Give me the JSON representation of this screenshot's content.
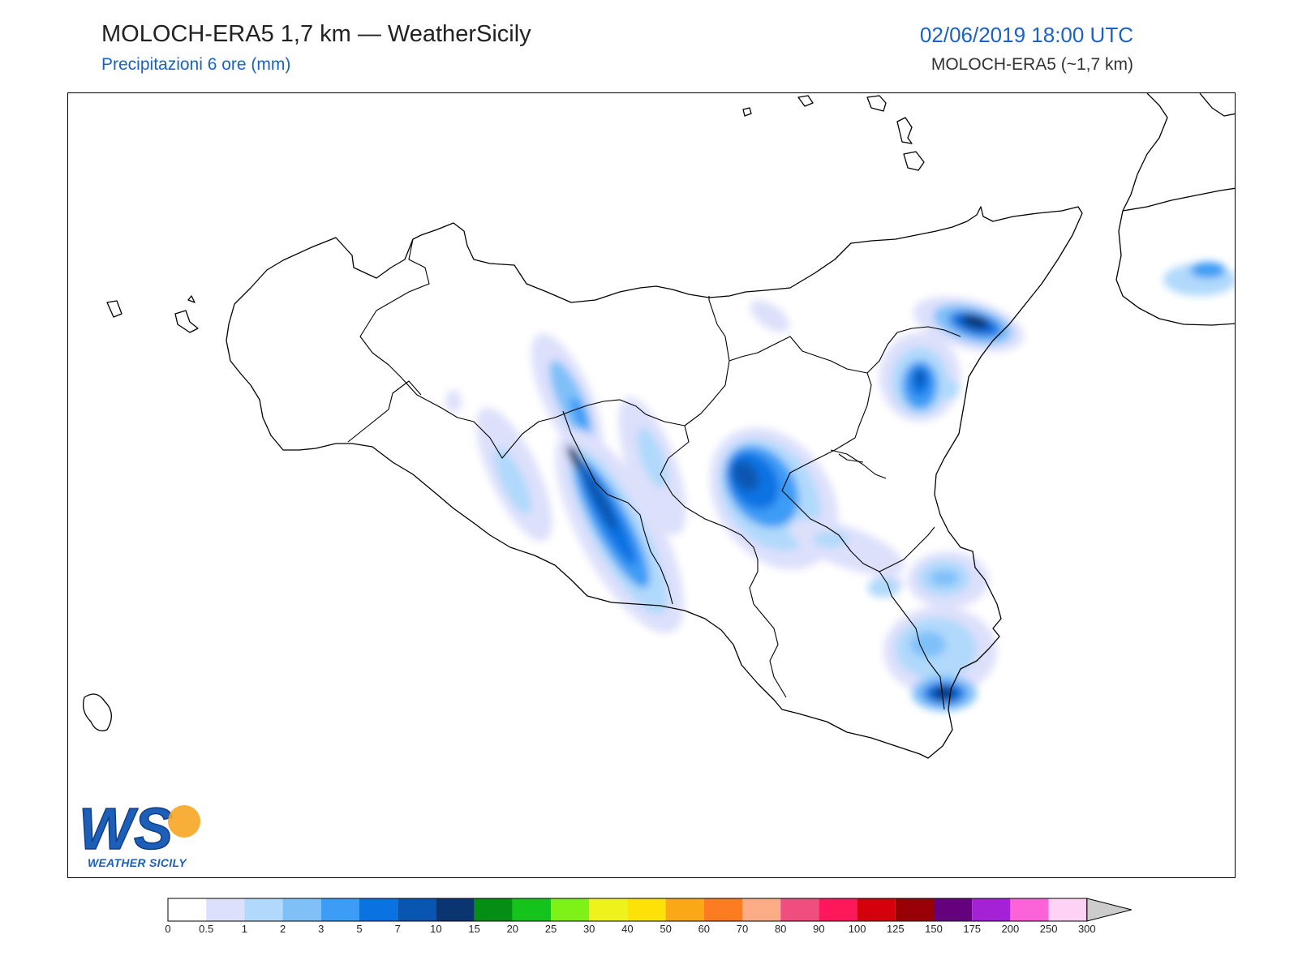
{
  "header": {
    "title": "MOLOCH-ERA5 1,7 km — WeatherSicily",
    "subtitle": "Precipitazioni 6 ore (mm)",
    "datetime": "02/06/2019 18:00 UTC",
    "model": "MOLOCH-ERA5 (~1,7 km)"
  },
  "logo": {
    "letters": "WS",
    "name": "WEATHER SICILY"
  },
  "colorbar": {
    "labels": [
      "0",
      "0.5",
      "1",
      "2",
      "3",
      "5",
      "7",
      "10",
      "15",
      "20",
      "25",
      "30",
      "40",
      "50",
      "60",
      "70",
      "80",
      "90",
      "100",
      "125",
      "150",
      "175",
      "200",
      "250",
      "300"
    ],
    "colors": [
      "#ffffff",
      "#dde0fb",
      "#b0d9fb",
      "#7fc0f9",
      "#3d9cf6",
      "#0b72e2",
      "#0956b1",
      "#0a3571",
      "#058e14",
      "#14c31c",
      "#7ef217",
      "#eef41b",
      "#fde207",
      "#fba816",
      "#fd7b21",
      "#fdad86",
      "#f04e7e",
      "#fe175b",
      "#d4000b",
      "#990005",
      "#66017d",
      "#a322d6",
      "#fc63d9",
      "#fed2f4"
    ],
    "overflow_color": "#cccccc"
  }
}
